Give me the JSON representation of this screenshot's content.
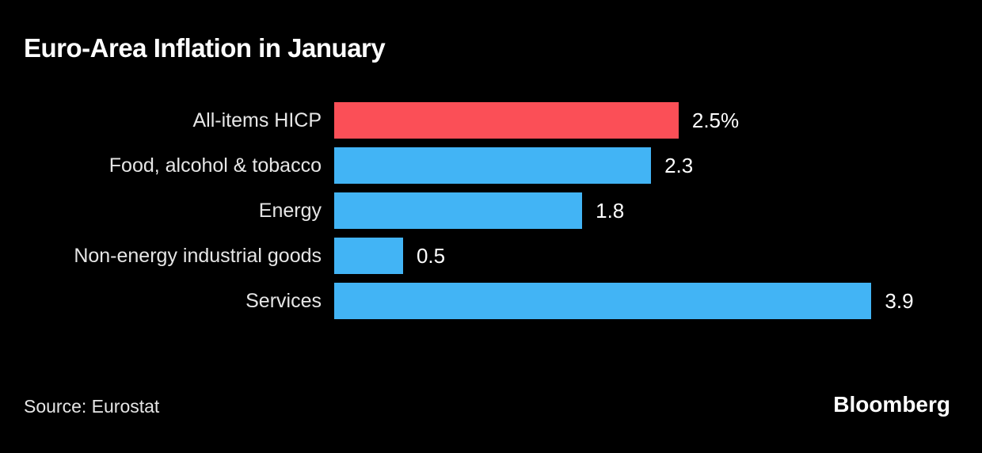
{
  "header": {
    "title": "Euro-Area Inflation in January"
  },
  "footer": {
    "source_label": "Source: Eurostat",
    "brand": "Bloomberg"
  },
  "colors": {
    "background": "#000000",
    "bar_default": "#42B4F5",
    "bar_highlight": "#FB4F57",
    "title_text": "#FFFFFF",
    "label_text": "#E6E6E6",
    "value_text": "#FFFFFF"
  },
  "chart_data": {
    "type": "bar",
    "orientation": "horizontal",
    "title": "Euro-Area Inflation in January",
    "categories": [
      "All-items HICP",
      "Food, alcohol & tobacco",
      "Energy",
      "Non-energy industrial goods",
      "Services"
    ],
    "values": [
      2.5,
      2.3,
      1.8,
      0.5,
      3.9
    ],
    "value_labels": [
      "2.5%",
      "2.3",
      "1.8",
      "0.5",
      "3.9"
    ],
    "unit": "%",
    "highlight_index": 0,
    "xlim": [
      0,
      4.53
    ],
    "grid": false,
    "legend": false,
    "source": "Eurostat"
  }
}
